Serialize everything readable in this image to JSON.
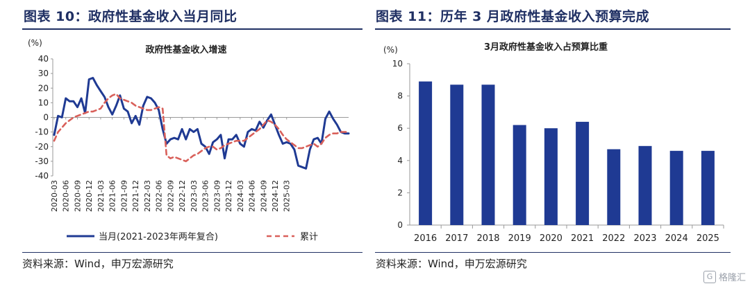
{
  "left": {
    "figure_title": "图表 10：政府性基金收入当月同比",
    "source": "资料来源：Wind，申万宏源研究"
  },
  "right": {
    "figure_title": "图表 11：历年 3 月政府性基金收入预算完成",
    "source": "资料来源：Wind，申万宏源研究"
  },
  "watermark": {
    "icon": "G",
    "text": "格隆汇"
  },
  "chart_data": [
    {
      "type": "line",
      "title": "政府性基金收入增速",
      "ylabel": "(%)",
      "ylim": [
        -40,
        40
      ],
      "yticks": [
        -40,
        -30,
        -20,
        -10,
        0,
        10,
        20,
        30,
        40
      ],
      "x_tick_labels": [
        "2020-03",
        "2020-06",
        "2020-09",
        "2020-12",
        "2021-03",
        "2021-06",
        "2021-09",
        "2021-12",
        "2022-03",
        "2022-06",
        "2022-09",
        "2022-12",
        "2023-03",
        "2023-06",
        "2023-09",
        "2023-12",
        "2024-03",
        "2024-06",
        "2024-09",
        "2024-12",
        "2025-03"
      ],
      "x_start": "2020-03",
      "grid": false,
      "legend_position": "bottom",
      "series": [
        {
          "name": "当月(2021-2023年两年复合)",
          "color": "#1f3a93",
          "style": "solid",
          "values": [
            -12,
            1,
            0,
            13,
            11,
            11,
            7,
            13,
            3,
            26,
            27,
            22,
            18,
            14,
            7,
            2,
            8,
            15,
            6,
            4,
            -4,
            1,
            -5,
            8,
            14,
            13,
            10,
            5,
            -8,
            -18,
            -15,
            -14,
            -15,
            -8,
            -15,
            -8,
            -10,
            -8,
            -18,
            -20,
            -25,
            -17,
            -15,
            -12,
            -28,
            -15,
            -15,
            -12,
            -18,
            -20,
            -10,
            -8,
            -9,
            -3,
            -7,
            -2,
            2,
            -5,
            -12,
            -18,
            -17,
            -18,
            -22,
            -33,
            -34,
            -35,
            -22,
            -15,
            -14,
            -18,
            -1,
            4,
            -1,
            -5,
            -10,
            -11,
            -11
          ]
        },
        {
          "name": "累计",
          "color": "#d9605a",
          "style": "dashed",
          "values": [
            -16,
            -10,
            -7,
            -4,
            -2,
            0,
            1,
            2,
            3,
            4,
            4,
            5,
            6,
            10,
            13,
            15,
            16,
            13,
            12,
            11,
            10,
            8,
            7,
            6,
            5,
            5,
            6,
            7,
            6,
            -26,
            -28,
            -27,
            -28,
            -29,
            -30,
            -28,
            -26,
            -25,
            -23,
            -21,
            -20,
            -20,
            -22,
            -21,
            -19,
            -18,
            -17,
            -16,
            -16,
            -16,
            -14,
            -12,
            -10,
            -8,
            -5,
            -2,
            -3,
            -5,
            -8,
            -12,
            -15,
            -17,
            -19,
            -21,
            -21,
            -20,
            -19,
            -18,
            -20,
            -18,
            -14,
            -12,
            -11,
            -11,
            -10,
            -10,
            -10
          ]
        }
      ]
    },
    {
      "type": "bar",
      "title": "3月政府性基金收入占预算比重",
      "ylabel": "(%)",
      "ylim": [
        0,
        10
      ],
      "yticks": [
        0,
        2,
        4,
        6,
        8,
        10
      ],
      "categories": [
        "2016",
        "2017",
        "2018",
        "2019",
        "2020",
        "2021",
        "2022",
        "2023",
        "2024",
        "2025"
      ],
      "values": [
        8.9,
        8.7,
        8.7,
        6.2,
        6.0,
        6.4,
        4.7,
        4.9,
        4.6,
        4.6
      ],
      "color": "#1f3a93",
      "grid": false
    }
  ]
}
